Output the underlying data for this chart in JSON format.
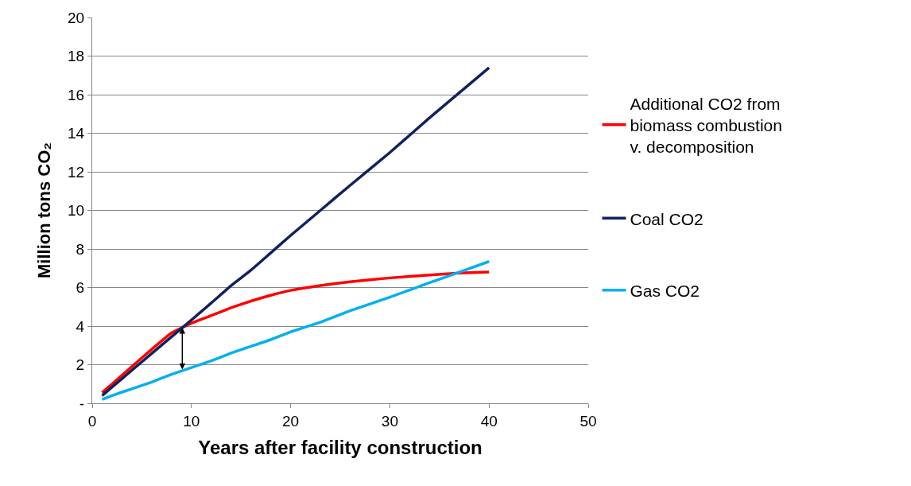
{
  "chart_data": {
    "type": "line",
    "xlabel": "Years after facility construction",
    "ylabel": "Million tons CO₂",
    "x": [
      1,
      2,
      4,
      6,
      8,
      10,
      12,
      14,
      16,
      18,
      20,
      23,
      26,
      30,
      34,
      37,
      40
    ],
    "series": [
      {
        "name": "Additional CO2 from biomass combustion v. decomposition",
        "color": "#ff0000",
        "values": [
          0.55,
          1.0,
          1.9,
          2.8,
          3.65,
          4.15,
          4.55,
          4.95,
          5.3,
          5.6,
          5.85,
          6.1,
          6.3,
          6.5,
          6.65,
          6.75,
          6.8
        ]
      },
      {
        "name": "Coal CO2",
        "color": "#0f2260",
        "values": [
          0.4,
          0.84,
          1.71,
          2.58,
          3.45,
          4.32,
          5.2,
          6.1,
          6.9,
          7.8,
          8.7,
          10.0,
          11.3,
          13.0,
          14.8,
          16.1,
          17.4
        ]
      },
      {
        "name": "Gas CO2",
        "color": "#00b0f0",
        "values": [
          0.2,
          0.4,
          0.75,
          1.1,
          1.5,
          1.85,
          2.2,
          2.6,
          2.95,
          3.3,
          3.7,
          4.2,
          4.8,
          5.5,
          6.25,
          6.8,
          7.35
        ]
      }
    ],
    "xlim": [
      0,
      50
    ],
    "xticks": [
      0,
      10,
      20,
      30,
      40,
      50
    ],
    "ylim": [
      0,
      20
    ],
    "yticks": [
      {
        "value": 0,
        "label": "-"
      },
      2,
      4,
      6,
      8,
      10,
      12,
      14,
      16,
      18,
      20
    ],
    "grid": "y",
    "legend": "right",
    "marker": "none",
    "line_style": "solid"
  }
}
